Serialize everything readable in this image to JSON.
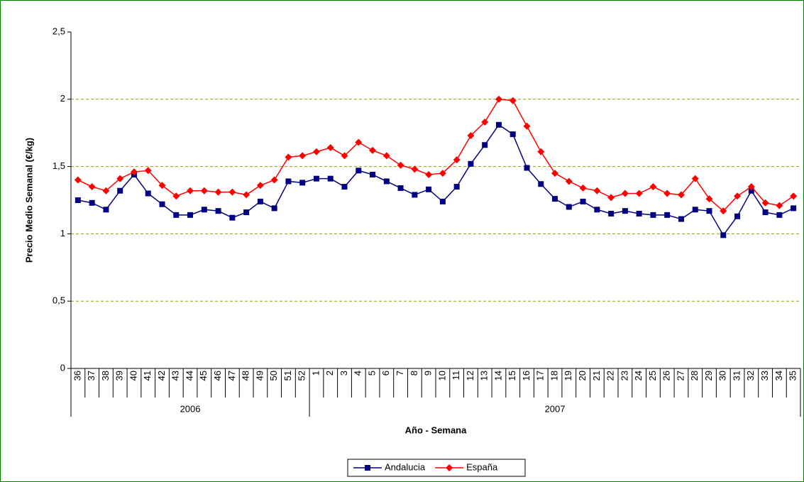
{
  "chart_data": {
    "type": "line",
    "x_label": "Año - Semana",
    "y_label": "Precio Medio Semanal (€/kg)",
    "category_groups": [
      {
        "name": "2006",
        "categories": [
          "36",
          "37",
          "38",
          "39",
          "40",
          "41",
          "42",
          "43",
          "44",
          "45",
          "46",
          "47",
          "48",
          "49",
          "50",
          "51",
          "52"
        ]
      },
      {
        "name": "2007",
        "categories": [
          "1",
          "2",
          "3",
          "4",
          "5",
          "6",
          "7",
          "8",
          "9",
          "10",
          "11",
          "12",
          "13",
          "14",
          "15",
          "16",
          "17",
          "18",
          "19",
          "20",
          "21",
          "22",
          "23",
          "24",
          "25",
          "26",
          "27",
          "28",
          "29",
          "30",
          "31",
          "32",
          "33",
          "34",
          "35"
        ]
      }
    ],
    "series": [
      {
        "name": "Andalucia",
        "color": "#000080",
        "marker": "square",
        "values": [
          1.25,
          1.23,
          1.18,
          1.32,
          1.44,
          1.3,
          1.22,
          1.14,
          1.14,
          1.18,
          1.17,
          1.12,
          1.16,
          1.24,
          1.19,
          1.39,
          1.38,
          1.41,
          1.41,
          1.35,
          1.47,
          1.44,
          1.39,
          1.34,
          1.29,
          1.33,
          1.24,
          1.35,
          1.52,
          1.66,
          1.81,
          1.74,
          1.49,
          1.37,
          1.26,
          1.2,
          1.24,
          1.18,
          1.15,
          1.17,
          1.15,
          1.14,
          1.14,
          1.11,
          1.18,
          1.17,
          0.99,
          1.13,
          1.32,
          1.16,
          1.14,
          1.19
        ]
      },
      {
        "name": "España",
        "color": "#ff0000",
        "marker": "diamond",
        "values": [
          1.4,
          1.35,
          1.32,
          1.41,
          1.46,
          1.47,
          1.36,
          1.28,
          1.32,
          1.32,
          1.31,
          1.31,
          1.29,
          1.36,
          1.4,
          1.57,
          1.58,
          1.61,
          1.64,
          1.58,
          1.68,
          1.62,
          1.58,
          1.51,
          1.48,
          1.44,
          1.45,
          1.55,
          1.73,
          1.83,
          2.0,
          1.99,
          1.8,
          1.61,
          1.45,
          1.39,
          1.34,
          1.32,
          1.27,
          1.3,
          1.3,
          1.35,
          1.3,
          1.29,
          1.41,
          1.26,
          1.17,
          1.28,
          1.35,
          1.23,
          1.21,
          1.28
        ]
      }
    ],
    "ylim": [
      0,
      2.5
    ],
    "yticks": [
      0,
      {
        "value": 0.5,
        "label": "0,5"
      },
      1,
      {
        "value": 1.5,
        "label": "1,5"
      },
      2,
      {
        "value": 2.5,
        "label": "2,5"
      }
    ],
    "grid": true,
    "grid_color": "#999900",
    "legend": "bottom"
  }
}
